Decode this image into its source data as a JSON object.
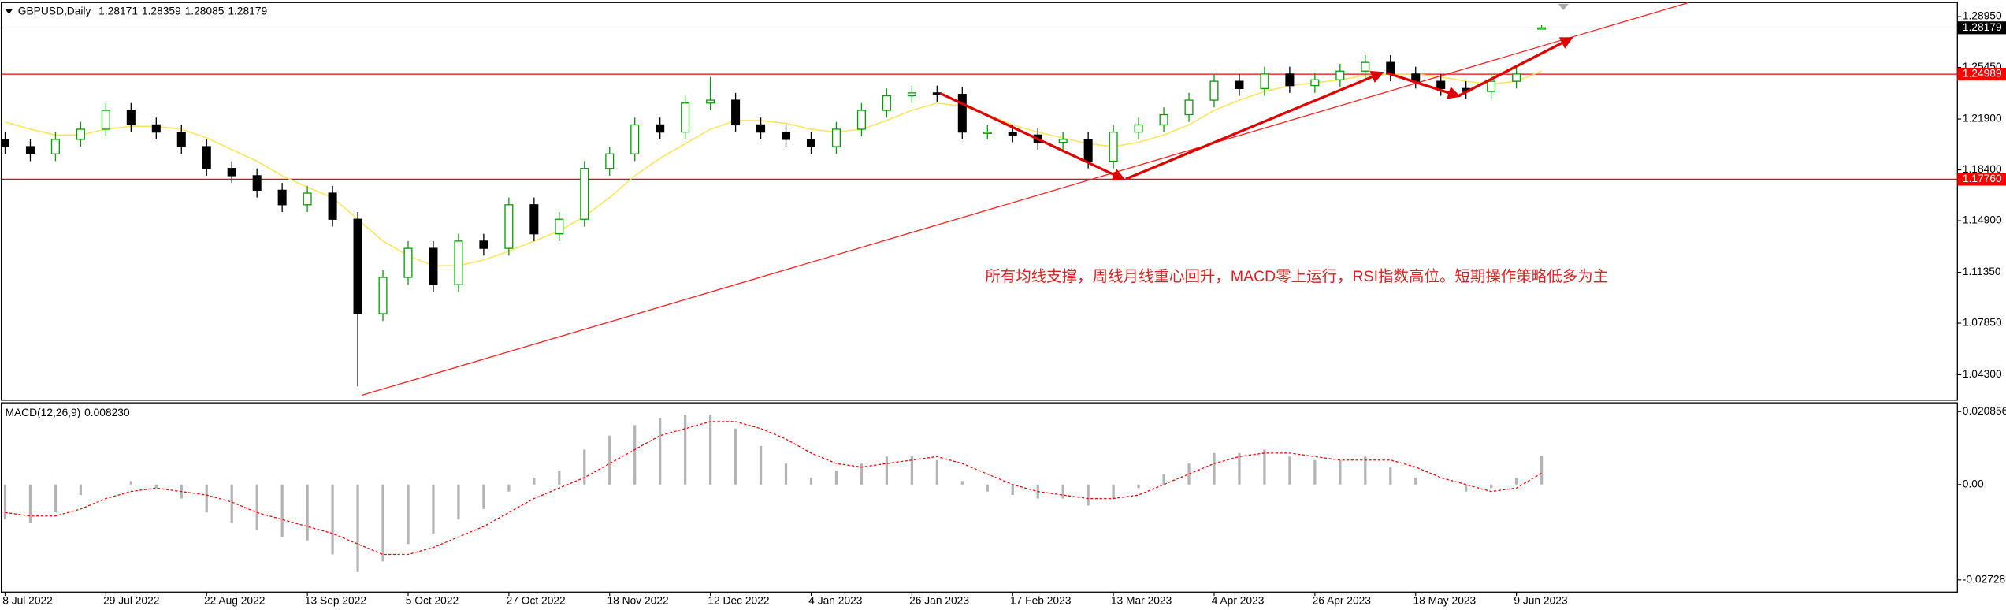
{
  "chart_data": {
    "type": "candlestick",
    "symbol": "GBPUSD,Daily",
    "x": [
      "8 Jul 2022",
      null,
      null,
      null,
      "29 Jul 2022",
      null,
      null,
      null,
      "22 Aug 2022",
      null,
      null,
      null,
      "13 Sep 2022",
      null,
      null,
      null,
      "5 Oct 2022",
      null,
      null,
      null,
      "27 Oct 2022",
      null,
      null,
      null,
      "18 Nov 2022",
      null,
      null,
      null,
      "12 Dec 2022",
      null,
      null,
      null,
      "4 Jan 2023",
      null,
      null,
      null,
      "26 Jan 2023",
      null,
      null,
      null,
      "17 Feb 2023",
      null,
      null,
      null,
      "13 Mar 2023",
      null,
      null,
      null,
      "4 Apr 2023",
      null,
      null,
      null,
      "26 Apr 2023",
      null,
      null,
      null,
      "18 May 2023",
      null,
      null,
      null,
      "9 Jun 2023",
      null
    ],
    "open": [
      1.205,
      1.2,
      1.195,
      1.205,
      1.212,
      1.225,
      1.215,
      1.21,
      1.2,
      1.185,
      1.18,
      1.17,
      1.16,
      1.168,
      1.15,
      1.085,
      1.11,
      1.13,
      1.105,
      1.135,
      1.13,
      1.16,
      1.14,
      1.15,
      1.185,
      1.195,
      1.215,
      1.21,
      1.23,
      1.232,
      1.215,
      1.21,
      1.205,
      1.2,
      1.212,
      1.225,
      1.235,
      1.237,
      1.236,
      1.21,
      1.21,
      1.208,
      1.203,
      1.205,
      1.19,
      1.21,
      1.215,
      1.222,
      1.232,
      1.245,
      1.24,
      1.25,
      1.242,
      1.246,
      1.252,
      1.258,
      1.25,
      1.245,
      1.24,
      1.238,
      1.245,
      1.28171
    ],
    "high": [
      1.21,
      1.205,
      1.21,
      1.217,
      1.23,
      1.23,
      1.22,
      1.215,
      1.205,
      1.19,
      1.185,
      1.175,
      1.173,
      1.173,
      1.155,
      1.115,
      1.135,
      1.135,
      1.14,
      1.14,
      1.165,
      1.165,
      1.155,
      1.19,
      1.2,
      1.22,
      1.22,
      1.235,
      1.248,
      1.237,
      1.22,
      1.215,
      1.21,
      1.217,
      1.23,
      1.24,
      1.242,
      1.242,
      1.241,
      1.215,
      1.215,
      1.213,
      1.21,
      1.21,
      1.215,
      1.22,
      1.227,
      1.237,
      1.25,
      1.25,
      1.255,
      1.255,
      1.251,
      1.257,
      1.263,
      1.263,
      1.255,
      1.25,
      1.245,
      1.25,
      1.255,
      1.28359
    ],
    "low": [
      1.195,
      1.19,
      1.19,
      1.2,
      1.207,
      1.21,
      1.205,
      1.195,
      1.18,
      1.175,
      1.165,
      1.155,
      1.155,
      1.145,
      1.035,
      1.08,
      1.105,
      1.1,
      1.1,
      1.125,
      1.125,
      1.135,
      1.135,
      1.145,
      1.18,
      1.19,
      1.205,
      1.205,
      1.225,
      1.21,
      1.205,
      1.2,
      1.195,
      1.195,
      1.207,
      1.22,
      1.23,
      1.231,
      1.205,
      1.205,
      1.203,
      1.198,
      1.198,
      1.185,
      1.185,
      1.205,
      1.21,
      1.217,
      1.227,
      1.235,
      1.235,
      1.237,
      1.237,
      1.241,
      1.247,
      1.245,
      1.24,
      1.235,
      1.233,
      1.233,
      1.24,
      1.28085
    ],
    "close": [
      1.2,
      1.195,
      1.205,
      1.212,
      1.225,
      1.215,
      1.21,
      1.2,
      1.185,
      1.18,
      1.17,
      1.16,
      1.168,
      1.15,
      1.085,
      1.11,
      1.13,
      1.105,
      1.135,
      1.13,
      1.16,
      1.14,
      1.15,
      1.185,
      1.195,
      1.215,
      1.21,
      1.23,
      1.232,
      1.215,
      1.21,
      1.205,
      1.2,
      1.212,
      1.225,
      1.235,
      1.237,
      1.236,
      1.21,
      1.21,
      1.208,
      1.203,
      1.205,
      1.19,
      1.21,
      1.215,
      1.222,
      1.232,
      1.245,
      1.24,
      1.25,
      1.242,
      1.246,
      1.252,
      1.258,
      1.25,
      1.245,
      1.24,
      1.238,
      1.245,
      1.25,
      1.28179
    ],
    "up_color": "#00a000",
    "down_color": "#000000",
    "ma": {
      "color": "#ffe55c",
      "values": [
        1.217,
        1.212,
        1.208,
        1.208,
        1.212,
        1.214,
        1.214,
        1.212,
        1.206,
        1.198,
        1.19,
        1.18,
        1.172,
        1.165,
        1.15,
        1.135,
        1.125,
        1.118,
        1.118,
        1.122,
        1.128,
        1.135,
        1.142,
        1.152,
        1.165,
        1.18,
        1.192,
        1.202,
        1.212,
        1.218,
        1.218,
        1.216,
        1.212,
        1.21,
        1.212,
        1.218,
        1.225,
        1.23,
        1.228,
        1.222,
        1.215,
        1.21,
        1.206,
        1.202,
        1.2,
        1.203,
        1.208,
        1.215,
        1.225,
        1.232,
        1.238,
        1.242,
        1.244,
        1.246,
        1.249,
        1.25,
        1.25,
        1.248,
        1.245,
        1.243,
        1.245,
        1.252
      ]
    },
    "ylim": [
      1.0263,
      1.2983
    ],
    "yticks": [
      {
        "value": 1.2895,
        "label": "1.28950"
      },
      {
        "value": 1.2545,
        "label": "1.25450"
      },
      {
        "value": 1.219,
        "label": "1.21900"
      },
      {
        "value": 1.184,
        "label": "1.18400"
      },
      {
        "value": 1.149,
        "label": "1.14900"
      },
      {
        "value": 1.1135,
        "label": "1.11350"
      },
      {
        "value": 1.0785,
        "label": "1.07850"
      },
      {
        "value": 1.043,
        "label": "1.04300"
      }
    ],
    "levels": [
      1.24989,
      {
        "value": 1.1776,
        "label": "1.17760"
      }
    ],
    "level_color": "#ff0000",
    "annotation": "所有均线支撑，周线月线重心回升，MACD零上运行，RSI指数高位。短期操作策略低多为主",
    "macd": {
      "label": "MACD(12,26,9)",
      "hist": [
        -0.01,
        -0.011,
        -0.008,
        -0.003,
        0.0,
        0.001,
        -0.001,
        -0.004,
        -0.008,
        -0.011,
        -0.013,
        -0.015,
        -0.016,
        -0.02,
        -0.025,
        -0.022,
        -0.017,
        -0.014,
        -0.01,
        -0.007,
        -0.002,
        0.002,
        0.004,
        0.01,
        0.014,
        0.017,
        0.019,
        0.02,
        0.02,
        0.016,
        0.011,
        0.006,
        0.002,
        0.004,
        0.006,
        0.008,
        0.008,
        0.007,
        0.001,
        -0.002,
        -0.003,
        -0.004,
        -0.004,
        -0.006,
        -0.004,
        -0.001,
        0.003,
        0.006,
        0.009,
        0.009,
        0.01,
        0.008,
        0.007,
        0.007,
        0.008,
        0.005,
        0.002,
        0.0,
        -0.002,
        -0.001,
        0.002,
        0.00823
      ],
      "hist_last_label": "0.008230",
      "signal": [
        -0.008,
        -0.009,
        -0.009,
        -0.007,
        -0.004,
        -0.002,
        -0.001,
        -0.002,
        -0.003,
        -0.005,
        -0.008,
        -0.01,
        -0.012,
        -0.014,
        -0.017,
        -0.02,
        -0.02,
        -0.018,
        -0.015,
        -0.012,
        -0.008,
        -0.004,
        -0.001,
        0.002,
        0.006,
        0.01,
        0.014,
        0.016,
        0.018,
        0.018,
        0.016,
        0.013,
        0.009,
        0.006,
        0.005,
        0.006,
        0.007,
        0.008,
        0.006,
        0.003,
        0.0,
        -0.002,
        -0.003,
        -0.004,
        -0.004,
        -0.003,
        0.0,
        0.003,
        0.006,
        0.008,
        0.009,
        0.009,
        0.008,
        0.007,
        0.007,
        0.007,
        0.005,
        0.002,
        0.0,
        -0.002,
        -0.001,
        0.003251
      ],
      "hist_color": "#b4b4b4",
      "signal_color": "#ff0000",
      "ylim": [
        -0.0304,
        0.023
      ],
      "yticks": [
        0.020856,
        {
          "value": 0,
          "label": "0.00"
        },
        -0.02728
      ]
    }
  }
}
